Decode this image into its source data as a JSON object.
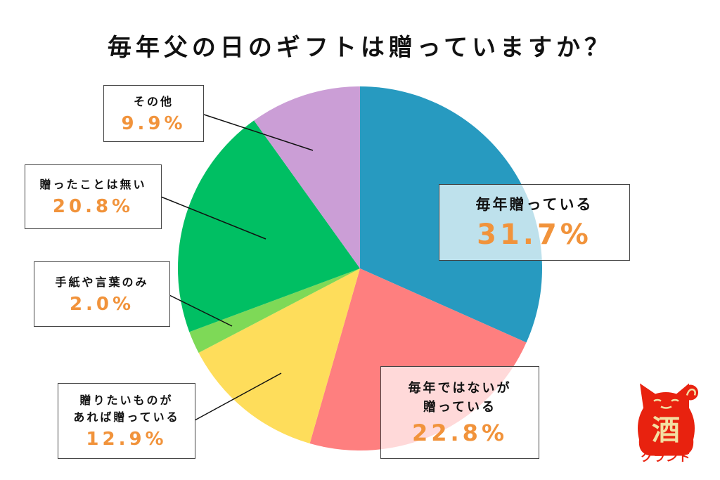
{
  "chart_data": {
    "type": "pie",
    "title": "毎年父の日のギフトは贈っていますか？",
    "start": "top",
    "direction": "clockwise",
    "slices": [
      {
        "label": "毎年贈っている",
        "value": 31.7,
        "display": "31.7%",
        "color": "#279ac0"
      },
      {
        "label": "毎年ではないが贈っている",
        "value": 22.8,
        "display": "22.8%",
        "color": "#fe7f7f"
      },
      {
        "label": "贈りたいものがあれば贈っている",
        "value": 12.9,
        "display": "12.9%",
        "color": "#fedd5b"
      },
      {
        "label": "手紙や言葉のみ",
        "value": 2.0,
        "display": "2.0%",
        "color": "#7ed957"
      },
      {
        "label": "贈ったことは無い",
        "value": 20.8,
        "display": "20.8%",
        "color": "#00bf63"
      },
      {
        "label": "その他",
        "value": 9.9,
        "display": "9.9%",
        "color": "#cb9ed6"
      }
    ]
  },
  "labels": {
    "s0": "毎年贈っている",
    "s1a": "毎年ではないが",
    "s1b": "贈っている",
    "s2a": "贈りたいものが",
    "s2b": "あれば贈っている",
    "s3": "手紙や言葉のみ",
    "s4": "贈ったことは無い",
    "s5": "その他"
  },
  "logo": {
    "glyph": "酒",
    "text": "クランド",
    "color": "#e8220f"
  }
}
